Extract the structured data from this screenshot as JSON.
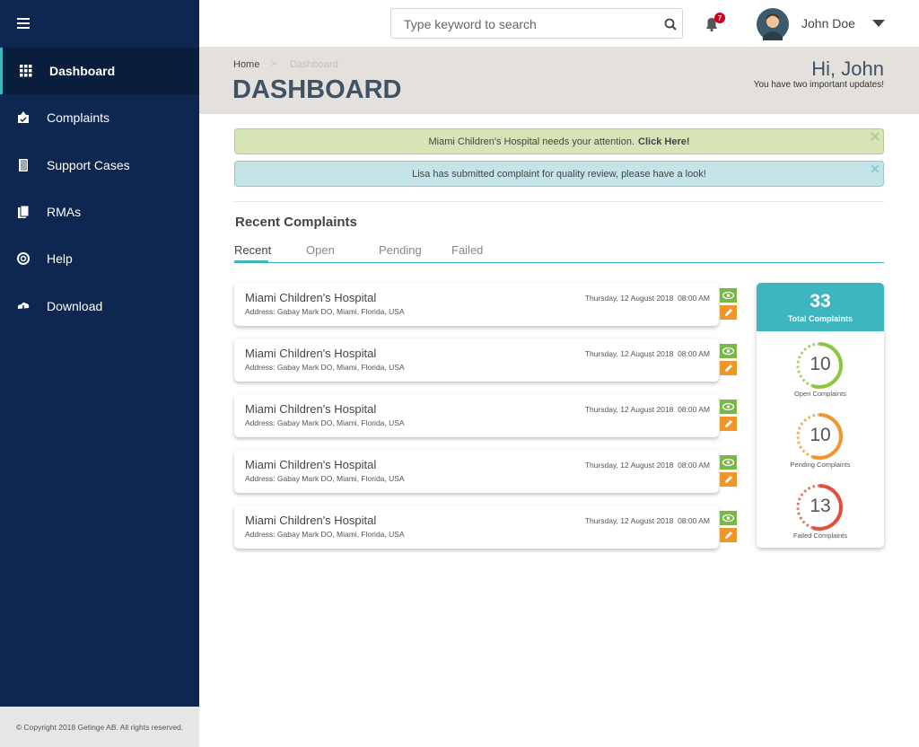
{
  "search": {
    "placeholder": "Type keyword to search"
  },
  "notifications": {
    "count": "7"
  },
  "user": {
    "name": "John Doe"
  },
  "sidebar": {
    "items": [
      "Dashboard",
      "Complaints",
      "Support Cases",
      "RMAs",
      "Help",
      "Download"
    ],
    "active": 0,
    "footer": "© Copyright 2018 Getinge AB. All rights reserved."
  },
  "header": {
    "breadcrumb": [
      "Home",
      "Dashboard"
    ],
    "title": "DASHBOARD",
    "greeting": "Hi, John",
    "subtitle": "You have two important updates!"
  },
  "alerts": [
    {
      "text": "Miami Children's Hospital needs your attention.",
      "link": "Click Here!",
      "color": "#d7e4b8",
      "border": "#b7cc8c"
    },
    {
      "text": "Lisa has submitted complaint for quality review, please have a look!",
      "color": "#c4e4e7",
      "border": "#8fcad0"
    }
  ],
  "section": {
    "title": "Recent Complaints",
    "tabs": [
      "Recent",
      "Open",
      "Pending",
      "Failed"
    ],
    "active_tab": 0
  },
  "complaints": [
    {
      "name": "Miami Children's Hospital",
      "address": "Address: Gabay Mark DO, Miami, Florida, USA",
      "date": "Thursday, 12 August 2018  08:00 AM"
    },
    {
      "name": "Miami Children's Hospital",
      "address": "Address: Gabay Mark DO, Miami, Florida, USA",
      "date": "Thursday, 12 August 2018  08:00 AM"
    },
    {
      "name": "Miami Children's Hospital",
      "address": "Address: Gabay Mark DO, Miami, Florida, USA",
      "date": "Thursday, 12 August 2018  08:00 AM"
    },
    {
      "name": "Miami Children's Hospital",
      "address": "Address: Gabay Mark DO, Miami, Florida, USA",
      "date": "Thursday, 12 August 2018  08:00 AM"
    },
    {
      "name": "Miami Children's Hospital",
      "address": "Address: Gabay Mark DO, Miami, Florida, USA",
      "date": "Thursday, 12 August 2018  08:00 AM"
    }
  ],
  "summary": {
    "total": "33",
    "total_label": "Total Complaints",
    "stats": [
      {
        "value": "10",
        "label": "Open Complaints",
        "color": "#8dc63f"
      },
      {
        "value": "10",
        "label": "Pending Complaints",
        "color": "#f0962b"
      },
      {
        "value": "13",
        "label": "Failed Complaints",
        "color": "#e4503c"
      }
    ]
  }
}
